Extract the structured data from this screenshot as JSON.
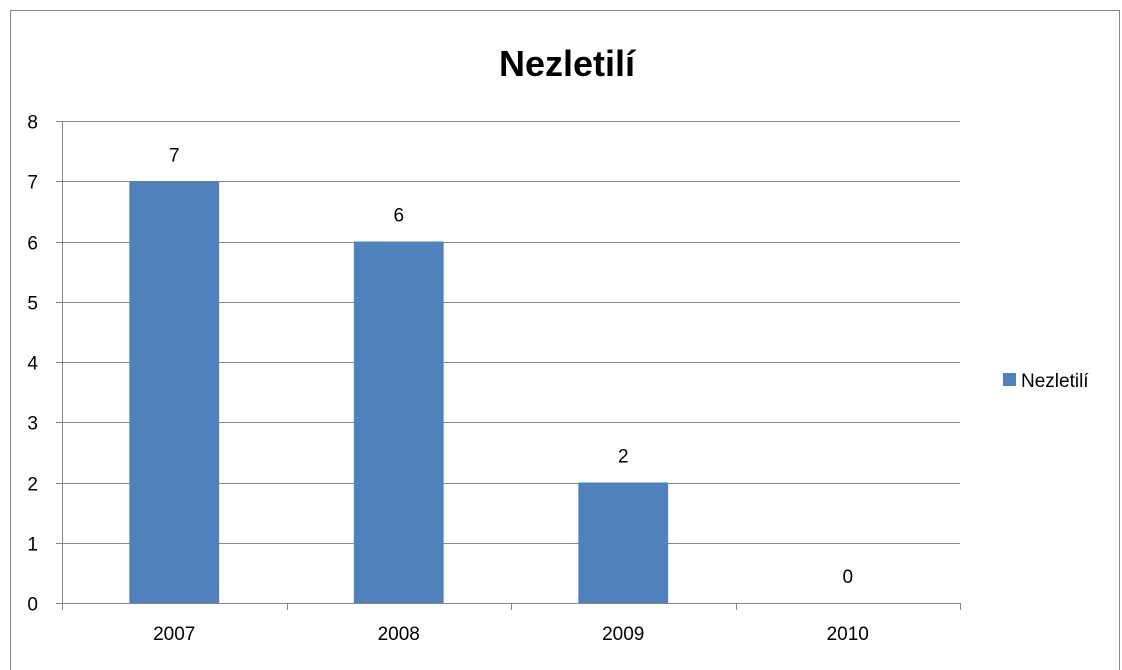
{
  "chart_data": {
    "type": "bar",
    "title": "Nezletilí",
    "xlabel": "",
    "ylabel": "",
    "categories": [
      "2007",
      "2008",
      "2009",
      "2010"
    ],
    "series": [
      {
        "name": "Nezletilí",
        "values": [
          7,
          6,
          2,
          0
        ]
      }
    ],
    "ylim": [
      0,
      8
    ],
    "yticks": [
      0,
      1,
      2,
      3,
      4,
      5,
      6,
      7,
      8
    ],
    "grid": true,
    "legend": "right",
    "data_labels": true,
    "bar_color": "#4f81bd",
    "grid_color": "#868686"
  }
}
